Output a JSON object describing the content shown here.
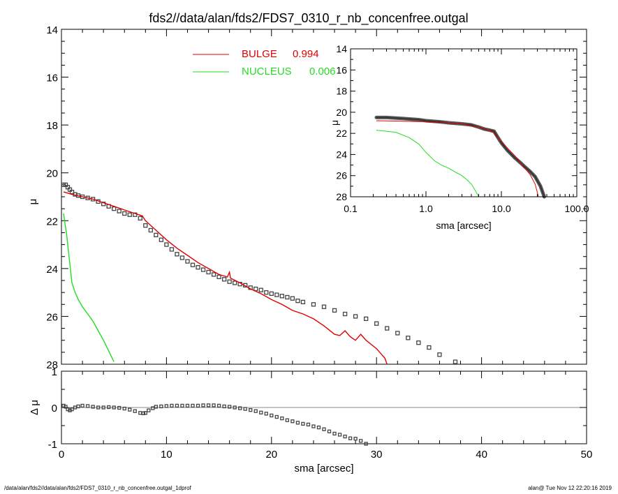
{
  "title": "fds2//data/alan/fds2/FDS7_0310_r_nb_concenfree.outgal",
  "footer": {
    "left": "/data/alan/fds2//data/alan/fds2/FDS7_0310_r_nb_concenfree.outgal_1dprof",
    "right": "alan@  Tue Nov 12 22:20:16 2019"
  },
  "colors": {
    "data": "#444444",
    "bulge": "#e00000",
    "nucleus": "#22dd22",
    "axis": "#000000",
    "zero_line": "#888888"
  },
  "chart_data": [
    {
      "id": "main",
      "type": "line",
      "xlabel": "",
      "ylabel": "μ",
      "xlim": [
        0,
        50
      ],
      "ylim": [
        28,
        14
      ],
      "y_inverted": true,
      "yticks": [
        "14",
        "16",
        "18",
        "20",
        "22",
        "24",
        "26",
        "28"
      ],
      "legend": {
        "placement": "top-center",
        "entries": [
          {
            "label": "BULGE",
            "value": "0.994",
            "color": "#e00000"
          },
          {
            "label": "NUCLEUS",
            "value": "0.006",
            "color": "#22dd22"
          }
        ]
      },
      "series": [
        {
          "name": "data",
          "style": "markers",
          "x": [
            0.2,
            0.4,
            0.6,
            0.8,
            1.0,
            1.3,
            1.6,
            2.0,
            2.5,
            3.0,
            3.5,
            4.0,
            4.5,
            5.0,
            5.5,
            6.0,
            6.5,
            7.0,
            7.5,
            8.0,
            8.5,
            9.0,
            9.5,
            10.0,
            10.5,
            11.0,
            11.5,
            12.0,
            12.5,
            13.0,
            13.5,
            14.0,
            14.5,
            15.0,
            15.5,
            16.0,
            16.5,
            17.0,
            17.5,
            18.0,
            18.5,
            19.0,
            19.5,
            20.0,
            20.5,
            21.0,
            21.5,
            22.0,
            22.5,
            23.0,
            24.0,
            25.0,
            26.0,
            27.0,
            28.0,
            29.0,
            30.0,
            31.0,
            32.0,
            33.0,
            34.0,
            35.0,
            36.0,
            37.5
          ],
          "y": [
            20.5,
            20.5,
            20.6,
            20.7,
            20.8,
            20.9,
            20.95,
            21.0,
            21.05,
            21.1,
            21.2,
            21.3,
            21.4,
            21.5,
            21.6,
            21.7,
            21.75,
            21.75,
            21.9,
            22.2,
            22.4,
            22.6,
            22.8,
            23.0,
            23.2,
            23.4,
            23.55,
            23.7,
            23.85,
            23.95,
            24.05,
            24.15,
            24.25,
            24.35,
            24.45,
            24.55,
            24.6,
            24.65,
            24.7,
            24.8,
            24.85,
            24.9,
            25.0,
            25.05,
            25.1,
            25.15,
            25.2,
            25.25,
            25.35,
            25.4,
            25.5,
            25.6,
            25.75,
            25.9,
            26.0,
            26.1,
            26.3,
            26.5,
            26.7,
            26.9,
            27.1,
            27.3,
            27.6,
            27.9
          ]
        },
        {
          "name": "BULGE",
          "style": "line",
          "color": "#e00000",
          "x": [
            0.2,
            1.0,
            2.0,
            3.0,
            4.0,
            5.0,
            6.0,
            7.0,
            7.7,
            8.0,
            9.0,
            10.0,
            11.0,
            12.0,
            13.0,
            14.0,
            15.0,
            15.8,
            16.0,
            16.1,
            17.0,
            18.0,
            19.0,
            20.0,
            21.0,
            22.0,
            23.0,
            24.0,
            25.0,
            26.0,
            26.5,
            27.0,
            27.5,
            28.0,
            28.5,
            29.0,
            30.0,
            30.8,
            31.0
          ],
          "y": [
            20.8,
            20.9,
            21.0,
            21.1,
            21.25,
            21.4,
            21.55,
            21.7,
            21.8,
            22.0,
            22.4,
            22.8,
            23.15,
            23.45,
            23.75,
            24.0,
            24.25,
            24.35,
            24.15,
            24.4,
            24.6,
            24.85,
            25.05,
            25.3,
            25.5,
            25.75,
            25.9,
            26.1,
            26.4,
            26.75,
            26.8,
            26.6,
            26.85,
            27.0,
            26.75,
            27.0,
            27.35,
            27.75,
            28.1
          ]
        },
        {
          "name": "NUCLEUS",
          "style": "line",
          "color": "#22dd22",
          "x": [
            0.2,
            0.5,
            0.8,
            1.0,
            1.3,
            1.6,
            2.0,
            2.5,
            3.0,
            3.5,
            4.0,
            4.5,
            5.0
          ],
          "y": [
            21.7,
            22.6,
            23.8,
            24.6,
            25.0,
            25.3,
            25.6,
            25.9,
            26.2,
            26.6,
            27.0,
            27.45,
            27.9
          ]
        }
      ]
    },
    {
      "id": "residual",
      "type": "scatter",
      "xlabel": "sma [arcsec]",
      "ylabel": "Δ μ",
      "xlim": [
        0,
        50
      ],
      "ylim": [
        -1,
        1
      ],
      "xticks": [
        "0",
        "10",
        "20",
        "30",
        "40",
        "50"
      ],
      "yticks": [
        "1",
        "0",
        "-1"
      ],
      "series": [
        {
          "name": "residual",
          "x": [
            0.2,
            0.4,
            0.6,
            0.8,
            1.0,
            1.3,
            1.6,
            2.0,
            2.5,
            3.0,
            3.5,
            4.0,
            4.5,
            5.0,
            5.5,
            6.0,
            6.5,
            7.0,
            7.5,
            7.8,
            8.0,
            8.3,
            8.7,
            9.0,
            9.5,
            10.0,
            10.5,
            11.0,
            11.5,
            12.0,
            12.5,
            13.0,
            13.5,
            14.0,
            14.5,
            15.0,
            15.5,
            16.0,
            16.5,
            17.0,
            17.5,
            18.0,
            18.5,
            19.0,
            19.5,
            20.0,
            20.5,
            21.0,
            21.5,
            22.0,
            22.5,
            23.0,
            23.5,
            24.0,
            24.5,
            25.0,
            25.5,
            26.0,
            26.5,
            27.0,
            27.5,
            28.0,
            28.5,
            29.0,
            30.5
          ],
          "y": [
            0.05,
            0.02,
            -0.05,
            -0.08,
            -0.05,
            0.0,
            0.03,
            0.05,
            0.04,
            0.02,
            0.0,
            0.0,
            0.01,
            0.0,
            -0.01,
            -0.03,
            -0.06,
            -0.1,
            -0.15,
            -0.16,
            -0.15,
            -0.08,
            -0.02,
            0.02,
            0.03,
            0.04,
            0.05,
            0.05,
            0.05,
            0.05,
            0.05,
            0.05,
            0.06,
            0.06,
            0.06,
            0.05,
            0.03,
            0.02,
            0.0,
            -0.02,
            -0.04,
            -0.07,
            -0.1,
            -0.14,
            -0.17,
            -0.22,
            -0.26,
            -0.3,
            -0.35,
            -0.38,
            -0.42,
            -0.45,
            -0.47,
            -0.52,
            -0.55,
            -0.6,
            -0.66,
            -0.72,
            -0.75,
            -0.8,
            -0.85,
            -0.86,
            -0.92,
            -1.0,
            -1.1
          ]
        }
      ]
    },
    {
      "id": "inset",
      "type": "line",
      "xlabel": "sma [arcsec]",
      "ylabel": "μ",
      "x_scale": "log",
      "xlim": [
        0.1,
        100
      ],
      "ylim": [
        28,
        14
      ],
      "y_inverted": true,
      "xticks": [
        "0.1",
        "1.0",
        "10.0",
        "100.0"
      ],
      "yticks": [
        "14",
        "16",
        "18",
        "20",
        "22",
        "24",
        "26",
        "28"
      ],
      "series": [
        {
          "name": "data",
          "style": "thick",
          "color": "#555555",
          "x": [
            0.22,
            0.3,
            0.5,
            0.8,
            1.0,
            1.5,
            2.0,
            3.0,
            4.0,
            5.0,
            6.0,
            7.0,
            7.5,
            8.0,
            9.0,
            10.0,
            12.0,
            15.0,
            18.0,
            20.0,
            24.0,
            28.0,
            33.0,
            37.0
          ],
          "y": [
            20.5,
            20.5,
            20.6,
            20.7,
            20.8,
            20.9,
            21.0,
            21.1,
            21.2,
            21.4,
            21.6,
            21.7,
            21.75,
            21.8,
            22.4,
            22.9,
            23.6,
            24.3,
            24.8,
            25.1,
            25.6,
            26.1,
            27.0,
            28.0
          ]
        },
        {
          "name": "BULGE",
          "style": "line",
          "color": "#e00000",
          "x": [
            0.22,
            0.5,
            1.0,
            2.0,
            3.0,
            5.0,
            7.0,
            8.0,
            10.0,
            12.0,
            15.0,
            18.0,
            20.0,
            24.0,
            28.0,
            31.0
          ],
          "y": [
            20.8,
            20.85,
            20.9,
            21.0,
            21.1,
            21.4,
            21.7,
            22.0,
            22.8,
            23.4,
            24.1,
            24.8,
            25.2,
            25.9,
            26.8,
            28.0
          ]
        },
        {
          "name": "NUCLEUS",
          "style": "line",
          "color": "#22dd22",
          "x": [
            0.22,
            0.4,
            0.6,
            0.8,
            1.0,
            1.3,
            1.6,
            2.0,
            2.5,
            3.0,
            3.5,
            4.0,
            4.5,
            5.0
          ],
          "y": [
            21.7,
            21.9,
            22.4,
            23.0,
            23.8,
            24.6,
            25.0,
            25.3,
            25.7,
            26.0,
            26.4,
            26.8,
            27.4,
            28.0
          ]
        }
      ]
    }
  ]
}
